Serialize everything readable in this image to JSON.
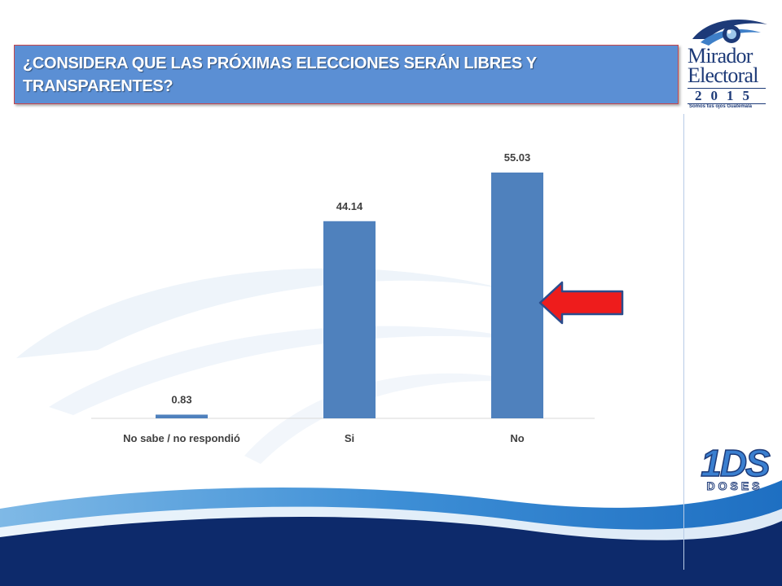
{
  "title": "¿CONSIDERA QUE LAS PRÓXIMAS ELECCIONES SERÁN LIBRES Y TRANSPARENTES?",
  "logos": {
    "mirador": {
      "word1": "Mirador",
      "word2": "Electoral",
      "year": "2015",
      "slogan": "Somos tus ojos Guatemala"
    },
    "doses": {
      "mark": "1DS",
      "word": "DOSES"
    }
  },
  "colors": {
    "title_bg": "#5b8fd4",
    "bar": "#4f81bd",
    "arrow": "#ee1c1c",
    "wave_dark": "#0d2a6b",
    "wave_light": "#4a9bd8"
  },
  "chart_data": {
    "type": "bar",
    "categories": [
      "No sabe / no respondió",
      "Si",
      "No"
    ],
    "values": [
      0.83,
      44.14,
      55.03
    ],
    "value_labels": [
      "0.83",
      "44.14",
      "55.03"
    ],
    "ylim": [
      0,
      60
    ],
    "grid": false,
    "highlight_category": "No"
  },
  "annotation": {
    "type": "arrow",
    "direction": "left",
    "points_to": "No"
  }
}
